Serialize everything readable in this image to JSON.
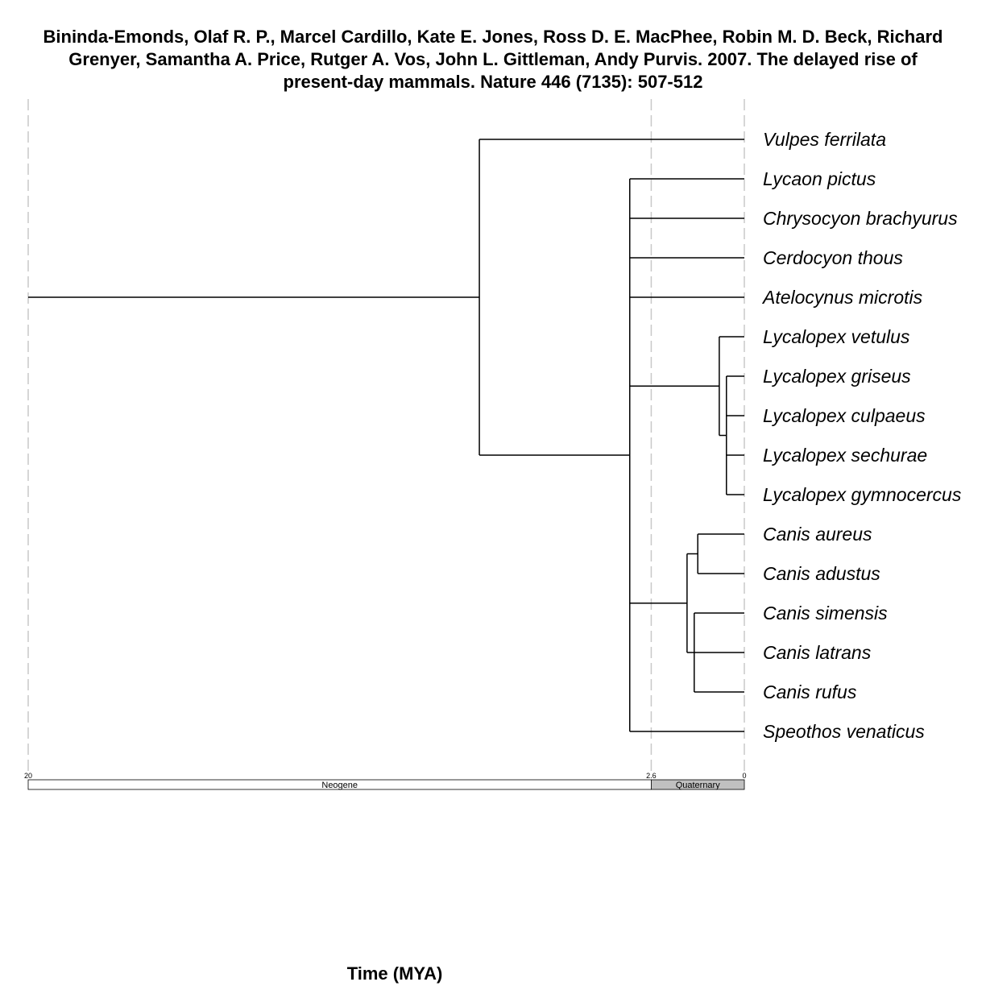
{
  "title": "Bininda-Emonds, Olaf R. P., Marcel Cardillo, Kate E. Jones, Ross D. E. MacPhee, Robin M. D. Beck, Richard Grenyer, Samantha A. Price, Rutger A. Vos, John L. Gittleman, Andy Purvis. 2007. The delayed rise of present-day mammals. Nature 446 (7135): 507-512",
  "x_axis_label": "Time (MYA)",
  "time_axis": {
    "max_mya": 20,
    "ticks": [
      {
        "value": 20,
        "label": "20"
      },
      {
        "value": 2.6,
        "label": "2.6"
      },
      {
        "value": 0,
        "label": "0"
      }
    ]
  },
  "periods": [
    {
      "name": "Neogene",
      "start_mya": 20,
      "end_mya": 2.6,
      "color": "#ffffff"
    },
    {
      "name": "Quaternary",
      "start_mya": 2.6,
      "end_mya": 0,
      "color": "#c0c0c0"
    }
  ],
  "tips": [
    "Vulpes ferrilata",
    "Lycaon pictus",
    "Chrysocyon brachyurus",
    "Cerdocyon thous",
    "Atelocynus microtis",
    "Lycalopex vetulus",
    "Lycalopex griseus",
    "Lycalopex culpaeus",
    "Lycalopex sechurae",
    "Lycalopex gymnocercus",
    "Canis aureus",
    "Canis adustus",
    "Canis simensis",
    "Canis latrans",
    "Canis rufus",
    "Speothos venaticus"
  ],
  "tree": {
    "age": 20,
    "children": [
      {
        "age": 7.4,
        "children": [
          {
            "tip": 0
          },
          {
            "age": 3.2,
            "children": [
              {
                "tip": 1
              },
              {
                "tip": 2
              },
              {
                "tip": 3
              },
              {
                "tip": 4
              },
              {
                "age": 0.7,
                "children": [
                  {
                    "tip": 5
                  },
                  {
                    "age": 0.5,
                    "children": [
                      {
                        "tip": 6
                      },
                      {
                        "tip": 7
                      },
                      {
                        "tip": 8
                      },
                      {
                        "tip": 9
                      }
                    ]
                  }
                ]
              },
              {
                "age": 1.6,
                "children": [
                  {
                    "age": 1.3,
                    "children": [
                      {
                        "tip": 10
                      },
                      {
                        "tip": 11
                      }
                    ]
                  },
                  {
                    "age": 1.4,
                    "children": [
                      {
                        "tip": 12
                      },
                      {
                        "tip": 13
                      },
                      {
                        "tip": 14
                      }
                    ]
                  }
                ]
              },
              {
                "tip": 15
              }
            ]
          }
        ]
      }
    ]
  }
}
